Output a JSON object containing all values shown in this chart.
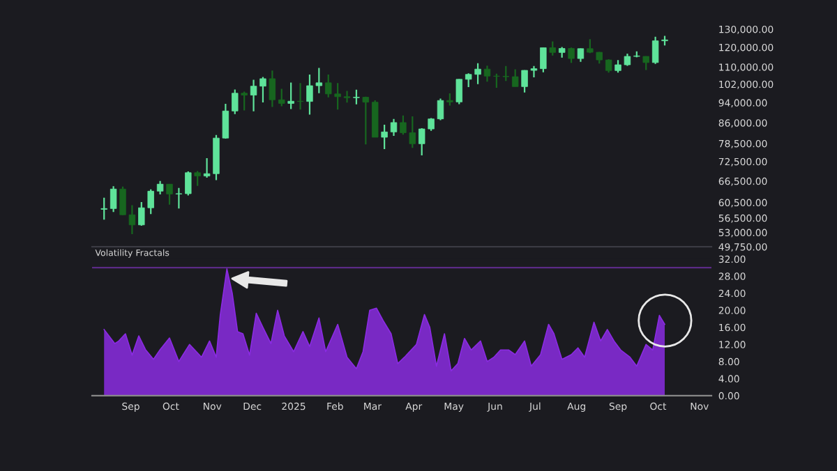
{
  "chart_data": [
    {
      "type": "candlestick",
      "log": "y",
      "tick_labels": "y",
      "grid": false,
      "legend": false,
      "colors": [
        "#5fe39a",
        "#5fe39a",
        "#17661f",
        "#17661f",
        "#5fe39a",
        "#5fe39a",
        "#5fe39a",
        "#17661f",
        "#5fe39a",
        "#5fe39a",
        "#17661f",
        "#5fe39a",
        "#5fe39a",
        "#5fe39a",
        "#5fe39a",
        "#17661f",
        "#5fe39a",
        "#5fe39a",
        "#17661f",
        "#17661f",
        "#5fe39a",
        "#17661f",
        "#5fe39a",
        "#5fe39a",
        "#17661f",
        "#17661f",
        "#17661f",
        "#5fe39a",
        "#17661f",
        "#17661f",
        "#5fe39a",
        "#5fe39a",
        "#17661f",
        "#17661f",
        "#5fe39a",
        "#5fe39a",
        "#5fe39a",
        "#17661f",
        "#5fe39a",
        "#5fe39a",
        "#5fe39a",
        "#17661f",
        "#17661f",
        "#17661f",
        "#17661f",
        "#5fe39a",
        "#5fe39a",
        "#5fe39a",
        "#17661f",
        "#5fe39a",
        "#17661f",
        "#5fe39a",
        "#17661f",
        "#17661f",
        "#17661f",
        "#5fe39a",
        "#5fe39a",
        "#5fe39a",
        "#17661f",
        "#5fe39a",
        "#5fe39a"
      ],
      "x": [
        "2024-08-12",
        "2024-08-19",
        "2024-08-26",
        "2024-09-02",
        "2024-09-09",
        "2024-09-16",
        "2024-09-23",
        "2024-09-30",
        "2024-10-07",
        "2024-10-14",
        "2024-10-21",
        "2024-10-28",
        "2024-11-04",
        "2024-11-11",
        "2024-11-18",
        "2024-11-25",
        "2024-12-02",
        "2024-12-09",
        "2024-12-16",
        "2024-12-23",
        "2024-12-30",
        "2025-01-06",
        "2025-01-13",
        "2025-01-20",
        "2025-01-27",
        "2025-02-03",
        "2025-02-10",
        "2025-02-17",
        "2025-02-24",
        "2025-03-03",
        "2025-03-10",
        "2025-03-17",
        "2025-03-24",
        "2025-03-31",
        "2025-04-07",
        "2025-04-14",
        "2025-04-21",
        "2025-04-28",
        "2025-05-05",
        "2025-05-12",
        "2025-05-19",
        "2025-05-26",
        "2025-06-02",
        "2025-06-09",
        "2025-06-16",
        "2025-06-23",
        "2025-06-30",
        "2025-07-07",
        "2025-07-14",
        "2025-07-21",
        "2025-07-28",
        "2025-08-04",
        "2025-08-11",
        "2025-08-18",
        "2025-08-25",
        "2025-09-01",
        "2025-09-08",
        "2025-09-15",
        "2025-09-22",
        "2025-09-29",
        "2025-10-06"
      ],
      "ohlc": [
        [
          58700,
          61800,
          56100,
          58900
        ],
        [
          58900,
          65000,
          58000,
          64200
        ],
        [
          64200,
          64900,
          57200,
          57300
        ],
        [
          57300,
          59800,
          52600,
          54800
        ],
        [
          54800,
          60600,
          54600,
          59100
        ],
        [
          59100,
          64100,
          57500,
          63600
        ],
        [
          63600,
          66500,
          62700,
          65600
        ],
        [
          65600,
          65600,
          59900,
          62800
        ],
        [
          62800,
          64500,
          58900,
          62900
        ],
        [
          62900,
          69400,
          62400,
          69000
        ],
        [
          69000,
          69500,
          65100,
          68000
        ],
        [
          68000,
          73600,
          67500,
          68700
        ],
        [
          68700,
          81500,
          66800,
          80400
        ],
        [
          80400,
          93500,
          80200,
          90600
        ],
        [
          90600,
          99600,
          89400,
          98000
        ],
        [
          98000,
          98700,
          90800,
          97200
        ],
        [
          97200,
          104000,
          90500,
          101100
        ],
        [
          101100,
          105300,
          94100,
          104500
        ],
        [
          104500,
          108300,
          92200,
          95200
        ],
        [
          95200,
          99900,
          92500,
          93700
        ],
        [
          93700,
          102700,
          91400,
          94600
        ],
        [
          94600,
          102500,
          91200,
          94500
        ],
        [
          94500,
          106400,
          89200,
          101300
        ],
        [
          101300,
          109600,
          98000,
          102600
        ],
        [
          102600,
          106400,
          96200,
          97700
        ],
        [
          97700,
          102500,
          91200,
          96500
        ],
        [
          96500,
          99000,
          94000,
          96100
        ],
        [
          96100,
          99500,
          93300,
          96300
        ],
        [
          96300,
          96500,
          78200,
          94200
        ],
        [
          94200,
          95000,
          80700,
          80700
        ],
        [
          80700,
          85300,
          76600,
          82600
        ],
        [
          82600,
          87500,
          81200,
          86100
        ],
        [
          86100,
          88800,
          81600,
          82300
        ],
        [
          82300,
          88500,
          77000,
          78400
        ],
        [
          78400,
          84000,
          74500,
          83700
        ],
        [
          83700,
          87800,
          83000,
          87500
        ],
        [
          87500,
          95700,
          87000,
          94900
        ],
        [
          94900,
          97900,
          92800,
          94300
        ],
        [
          94300,
          104300,
          93400,
          104200
        ],
        [
          104200,
          107000,
          100700,
          106500
        ],
        [
          106500,
          111900,
          102000,
          109000
        ],
        [
          109000,
          110700,
          103100,
          105700
        ],
        [
          105700,
          106800,
          100400,
          105600
        ],
        [
          105600,
          110500,
          103400,
          105400
        ],
        [
          105400,
          108900,
          100900,
          100900
        ],
        [
          100900,
          108500,
          98300,
          108400
        ],
        [
          108400,
          110500,
          105100,
          109200
        ],
        [
          109200,
          119800,
          107500,
          119800
        ],
        [
          119800,
          123200,
          115700,
          117300
        ],
        [
          117300,
          120200,
          114700,
          119400
        ],
        [
          119400,
          119900,
          112000,
          114200
        ],
        [
          114200,
          119400,
          112600,
          119300
        ],
        [
          119300,
          124400,
          117000,
          117400
        ],
        [
          117400,
          117600,
          111700,
          113500
        ],
        [
          113500,
          113900,
          107300,
          108300
        ],
        [
          108300,
          113400,
          107300,
          111100
        ],
        [
          111100,
          116700,
          110600,
          115300
        ],
        [
          115300,
          117900,
          114800,
          115300
        ],
        [
          115300,
          115400,
          108600,
          112200
        ],
        [
          112200,
          125700,
          111500,
          123500
        ],
        [
          123500,
          126200,
          121000,
          124000
        ]
      ],
      "xlim": [
        "2024-08-03",
        "2025-11-10"
      ],
      "ylim": [
        49750,
        130000
      ],
      "yticks": [
        {
          "value": 49750,
          "label": "49,750.00"
        },
        {
          "value": 53000,
          "label": "53,000.00"
        },
        {
          "value": 56500,
          "label": "56,500.00"
        },
        {
          "value": 60500,
          "label": "60,500.00"
        },
        {
          "value": 66500,
          "label": "66,500.00"
        },
        {
          "value": 72500,
          "label": "72,500.00"
        },
        {
          "value": 78500,
          "label": "78,500.00"
        },
        {
          "value": 86000,
          "label": "86,000.00"
        },
        {
          "value": 94000,
          "label": "94,000.00"
        },
        {
          "value": 102000,
          "label": "102,000.00"
        },
        {
          "value": 110000,
          "label": "110,000.00"
        },
        {
          "value": 120000,
          "label": "120,000.00"
        },
        {
          "value": 130000,
          "label": "130,000.00"
        }
      ]
    },
    {
      "type": "area",
      "title": "Volatility Fractals",
      "grid": false,
      "legend": false,
      "x": [
        "2024-08-12",
        "2024-08-20",
        "2024-08-23",
        "2024-08-28",
        "2024-09-02",
        "2024-09-07",
        "2024-09-12",
        "2024-09-18",
        "2024-09-23",
        "2024-09-30",
        "2024-10-07",
        "2024-10-15",
        "2024-10-24",
        "2024-10-30",
        "2024-11-04",
        "2024-11-07",
        "2024-11-12",
        "2024-11-16",
        "2024-11-20",
        "2024-11-24",
        "2024-11-29",
        "2024-12-04",
        "2024-12-09",
        "2024-12-15",
        "2024-12-20",
        "2024-12-25",
        "2025-01-01",
        "2025-01-08",
        "2025-01-13",
        "2025-01-20",
        "2025-01-25",
        "2025-02-03",
        "2025-02-10",
        "2025-02-17",
        "2025-02-22",
        "2025-02-27",
        "2025-03-04",
        "2025-03-09",
        "2025-03-15",
        "2025-03-20",
        "2025-03-25",
        "2025-04-03",
        "2025-04-09",
        "2025-04-13",
        "2025-04-18",
        "2025-04-24",
        "2025-04-29",
        "2025-05-04",
        "2025-05-09",
        "2025-05-14",
        "2025-05-21",
        "2025-05-26",
        "2025-05-31",
        "2025-06-05",
        "2025-06-11",
        "2025-06-16",
        "2025-06-23",
        "2025-06-28",
        "2025-07-05",
        "2025-07-11",
        "2025-07-15",
        "2025-07-21",
        "2025-07-28",
        "2025-08-02",
        "2025-08-07",
        "2025-08-14",
        "2025-08-19",
        "2025-08-24",
        "2025-08-29",
        "2025-09-03",
        "2025-09-10",
        "2025-09-15",
        "2025-09-22",
        "2025-09-27",
        "2025-10-02",
        "2025-10-06"
      ],
      "series": [
        {
          "color": "#8a2be2",
          "values": [
            15.5,
            12.2,
            12.8,
            14.5,
            9.5,
            14,
            10.8,
            8.5,
            10.8,
            13.5,
            8,
            12,
            9,
            12.8,
            9,
            18.8,
            29.7,
            24,
            15,
            14.5,
            9.5,
            19.3,
            16,
            12.2,
            20,
            14,
            10.3,
            15,
            11.5,
            18.2,
            10.3,
            16.7,
            9,
            6.3,
            10.3,
            20,
            20.5,
            17.6,
            14.5,
            7.5,
            9,
            12,
            19,
            16,
            6.9,
            14.5,
            5.8,
            7.5,
            13.4,
            10.7,
            12.8,
            8,
            9,
            10.7,
            10.7,
            9.6,
            12.8,
            6.9,
            9.6,
            16.7,
            14.5,
            8.5,
            9.6,
            11.2,
            9,
            17.2,
            12.8,
            15.5,
            12.8,
            10.7,
            9,
            6.9,
            12,
            10.7,
            18.8,
            16.7
          ]
        }
      ],
      "ref_lines": [
        {
          "axis": "y",
          "value": 30,
          "color": "#5b2a86"
        }
      ],
      "xlim": [
        "2024-08-03",
        "2025-11-10"
      ],
      "ylim": [
        0,
        32
      ],
      "yticks": [
        {
          "value": 0,
          "label": "0.00"
        },
        {
          "value": 4,
          "label": "4.00"
        },
        {
          "value": 8,
          "label": "8.00"
        },
        {
          "value": 12,
          "label": "12.00"
        },
        {
          "value": 16,
          "label": "16.00"
        },
        {
          "value": 20,
          "label": "20.00"
        },
        {
          "value": 24,
          "label": "24.00"
        },
        {
          "value": 28,
          "label": "28.00"
        },
        {
          "value": 32,
          "label": "32.00"
        }
      ],
      "xticks": [
        {
          "value": "2024-09-01",
          "label": "Sep"
        },
        {
          "value": "2024-10-01",
          "label": "Oct"
        },
        {
          "value": "2024-11-01",
          "label": "Nov"
        },
        {
          "value": "2024-12-01",
          "label": "Dec"
        },
        {
          "value": "2025-01-01",
          "label": "2025"
        },
        {
          "value": "2025-02-01",
          "label": "Feb"
        },
        {
          "value": "2025-03-01",
          "label": "Mar"
        },
        {
          "value": "2025-04-01",
          "label": "Apr"
        },
        {
          "value": "2025-05-01",
          "label": "May"
        },
        {
          "value": "2025-06-01",
          "label": "Jun"
        },
        {
          "value": "2025-07-01",
          "label": "Jul"
        },
        {
          "value": "2025-08-01",
          "label": "Aug"
        },
        {
          "value": "2025-09-01",
          "label": "Sep"
        },
        {
          "value": "2025-10-01",
          "label": "Oct"
        },
        {
          "value": "2025-11-01",
          "label": "Nov"
        }
      ]
    }
  ]
}
